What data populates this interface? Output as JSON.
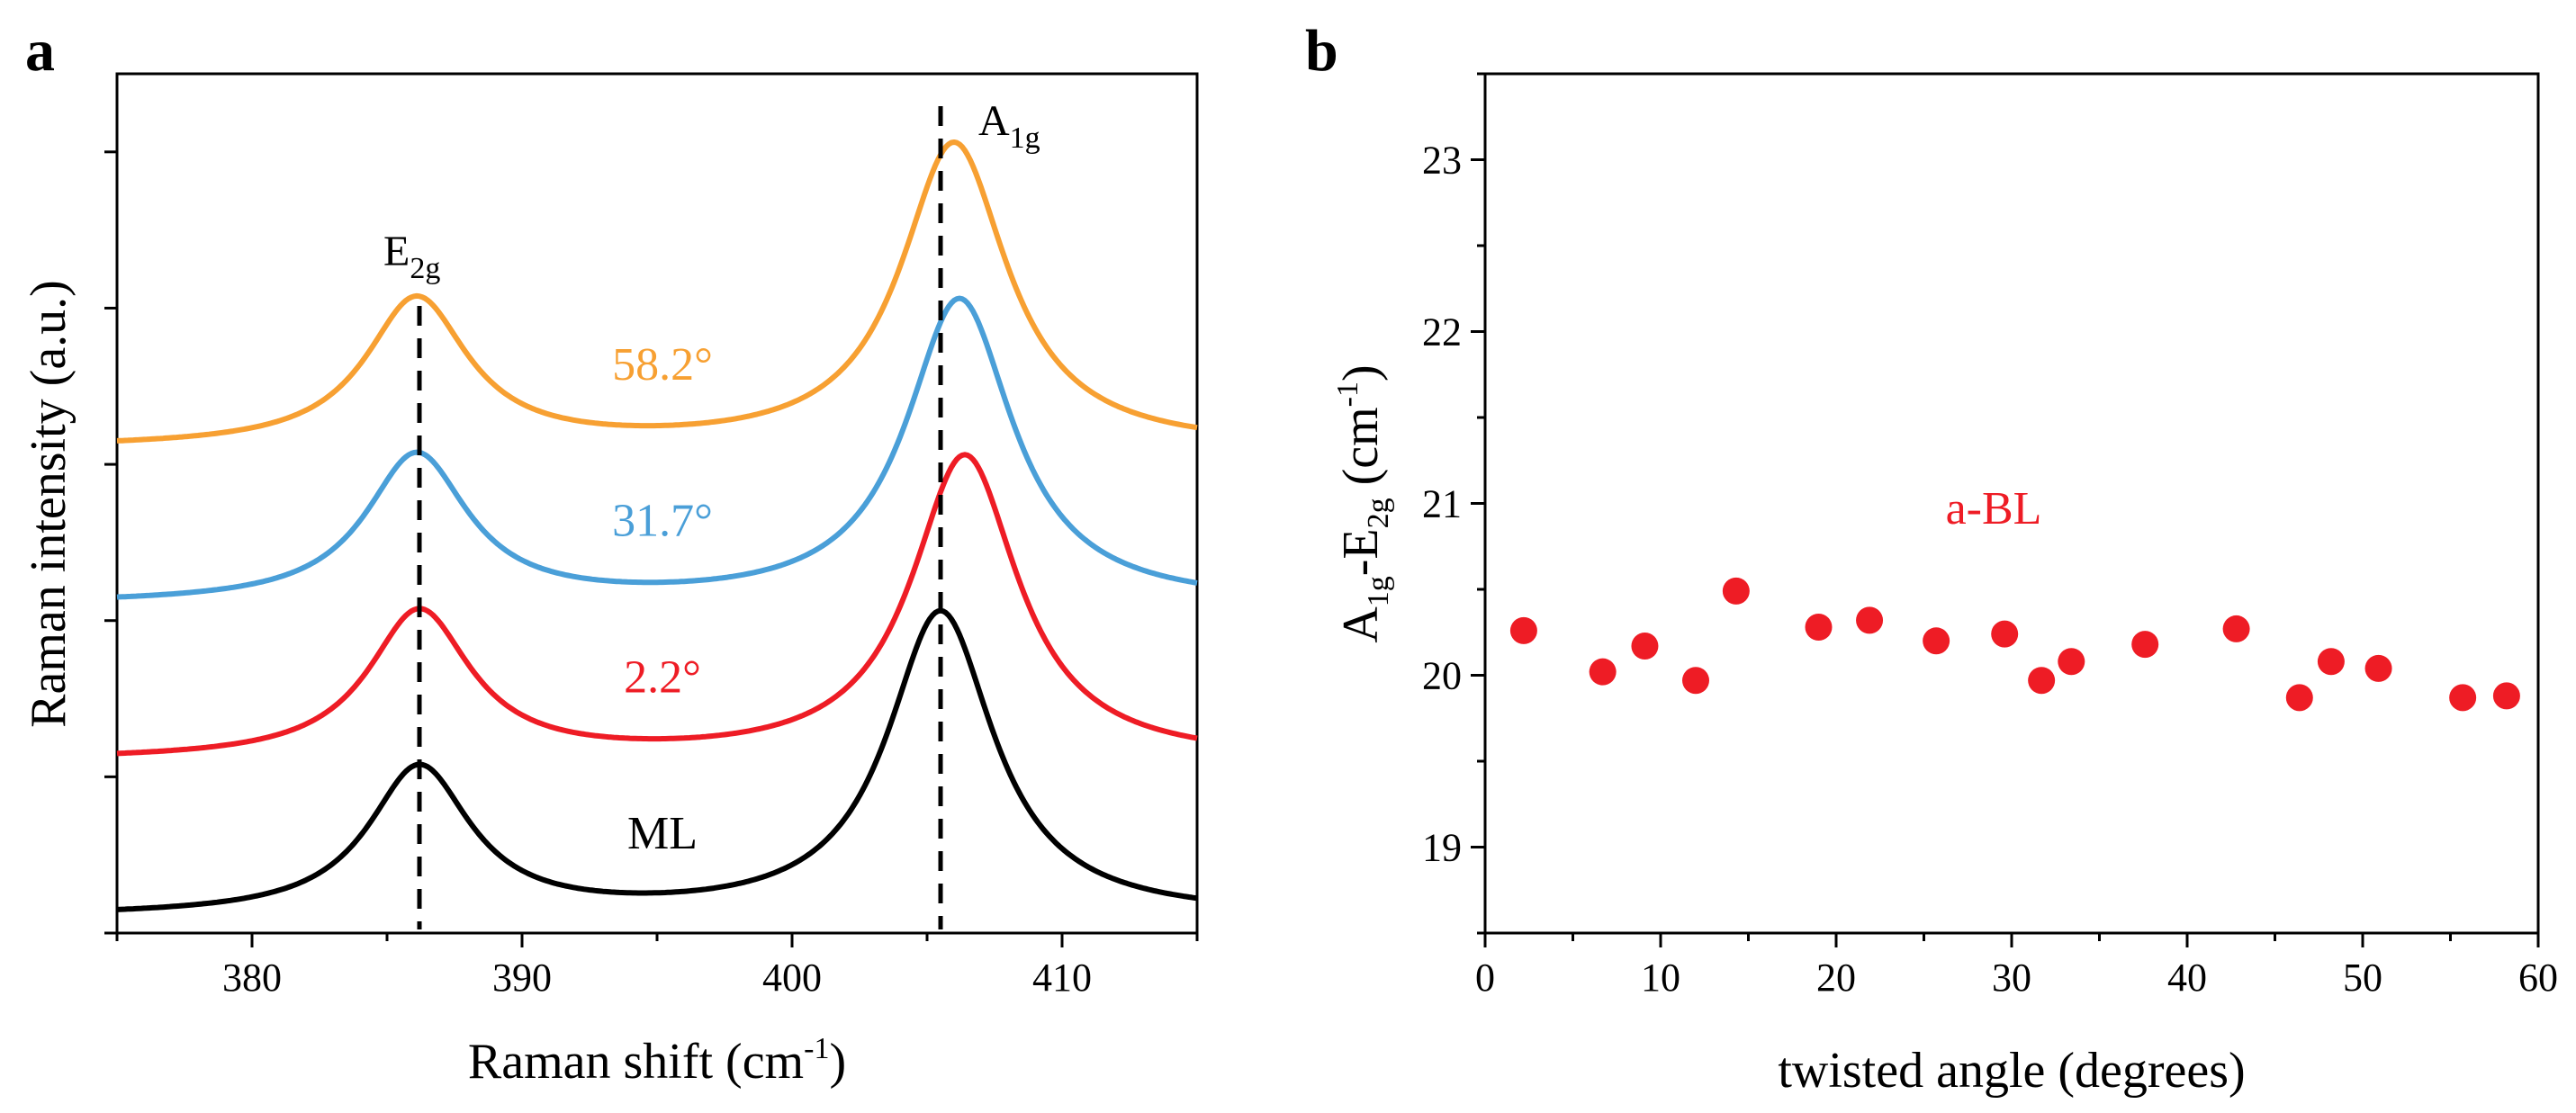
{
  "panels": {
    "a": "a",
    "b": "b"
  },
  "chart_data": [
    {
      "type": "line",
      "panel": "a",
      "title": "",
      "xlabel": "Raman shift (cm-1)",
      "xlabel_main": "Raman shift (cm",
      "xlabel_sup": "-1",
      "xlabel_close": ")",
      "ylabel": "Raman intensity (a.u.)",
      "xlim": [
        375,
        415
      ],
      "ylim": [
        0,
        5.5
      ],
      "xticks": [
        380,
        390,
        400,
        410
      ],
      "yticks_minor_count": 6,
      "peak_markers": [
        {
          "x": 386.2,
          "label": "E",
          "sub": "2g"
        },
        {
          "x": 405.5,
          "label": "A",
          "sub": "1g"
        }
      ],
      "series": [
        {
          "name": "ML",
          "color": "#000000",
          "offset": 0.0,
          "e2g_center": 386.2,
          "a1g_center": 405.5,
          "e2g_height": 0.95,
          "a1g_height": 1.95,
          "e2g_width": 2.3,
          "a1g_width": 2.4,
          "baseline": 0.1
        },
        {
          "name": "2.2°",
          "color": "#ee1c25",
          "offset": 1.0,
          "e2g_center": 386.2,
          "a1g_center": 406.4,
          "e2g_height": 0.95,
          "a1g_height": 1.95,
          "e2g_width": 2.3,
          "a1g_width": 2.4,
          "baseline": 0.1
        },
        {
          "name": "31.7°",
          "color": "#4a9fd8",
          "offset": 2.0,
          "e2g_center": 386.1,
          "a1g_center": 406.2,
          "e2g_height": 0.95,
          "a1g_height": 1.95,
          "e2g_width": 2.3,
          "a1g_width": 2.4,
          "baseline": 0.1
        },
        {
          "name": "58.2°",
          "color": "#f7a032",
          "offset": 3.0,
          "e2g_center": 386.1,
          "a1g_center": 406.0,
          "e2g_height": 0.95,
          "a1g_height": 1.95,
          "e2g_width": 2.3,
          "a1g_width": 2.4,
          "baseline": 0.1
        }
      ]
    },
    {
      "type": "scatter",
      "panel": "b",
      "title": "",
      "xlabel": "twisted angle (degrees)",
      "ylabel": "A1g-E2g (cm-1)",
      "xlim": [
        0,
        60
      ],
      "ylim": [
        18.5,
        23.5
      ],
      "xticks": [
        0,
        10,
        20,
        30,
        40,
        50,
        60
      ],
      "yticks": [
        19,
        20,
        21,
        22,
        23
      ],
      "annotation": "a-BL",
      "marker_color": "#ee1c25",
      "x": [
        2.2,
        6.7,
        9.1,
        12.0,
        14.3,
        19.0,
        21.9,
        25.7,
        29.6,
        31.7,
        33.4,
        37.6,
        42.8,
        46.4,
        48.2,
        50.9,
        55.7,
        58.2
      ],
      "y": [
        20.26,
        20.02,
        20.17,
        19.97,
        20.49,
        20.28,
        20.32,
        20.2,
        20.24,
        19.97,
        20.08,
        20.18,
        20.27,
        19.87,
        20.08,
        20.04,
        19.87,
        19.88
      ]
    }
  ]
}
